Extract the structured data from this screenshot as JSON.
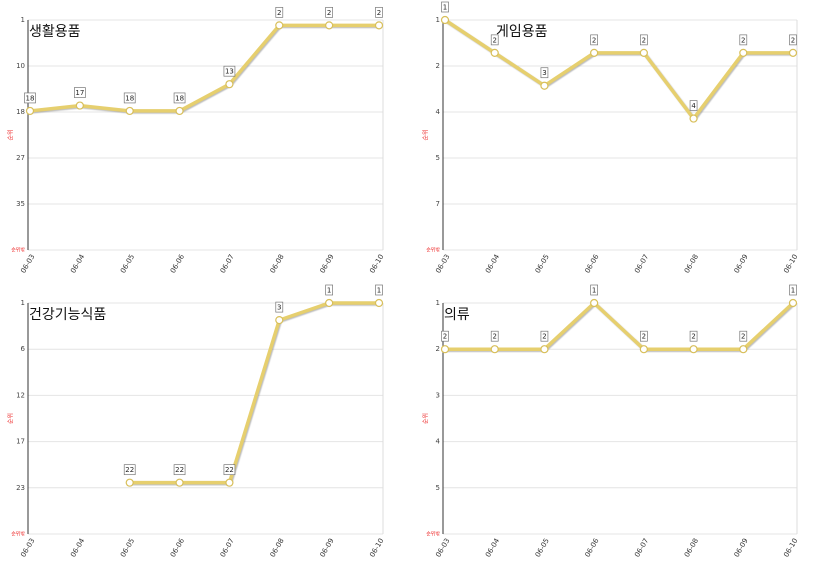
{
  "chart_data": [
    {
      "type": "line",
      "title": "생활용품",
      "ylabel": "순위",
      "y_inverted": true,
      "grid": true,
      "color": "#e6cf6e",
      "categories": [
        "06-03",
        "06-04",
        "06-05",
        "06-06",
        "06-07",
        "06-08",
        "06-09",
        "06-10"
      ],
      "values": [
        18,
        17,
        18,
        18,
        13,
        2,
        2,
        2
      ],
      "ylim": [
        1,
        44
      ],
      "yticks": [
        1,
        {
          "value": 9.6,
          "label": "10"
        },
        {
          "value": 18.2,
          "label": "18"
        },
        {
          "value": 26.8,
          "label": "27"
        },
        {
          "value": 35.4,
          "label": "35"
        },
        {
          "value": 44,
          "label": "순위밖"
        }
      ]
    },
    {
      "type": "line",
      "title": "게임용품",
      "ylabel": "순위",
      "y_inverted": true,
      "grid": true,
      "color": "#e6cf6e",
      "categories": [
        "06-03",
        "06-04",
        "06-05",
        "06-06",
        "06-07",
        "06-08",
        "06-09",
        "06-10"
      ],
      "values": [
        1,
        2,
        3,
        2,
        2,
        4,
        2,
        2
      ],
      "ylim": [
        1,
        8
      ],
      "yticks": [
        1,
        {
          "value": 2.4,
          "label": "2"
        },
        {
          "value": 3.8,
          "label": "4"
        },
        {
          "value": 5.2,
          "label": "5"
        },
        {
          "value": 6.6,
          "label": "7"
        },
        {
          "value": 8,
          "label": "순위밖"
        }
      ]
    },
    {
      "type": "line",
      "title": "건강기능식품",
      "ylabel": "순위",
      "y_inverted": true,
      "grid": true,
      "color": "#e6cf6e",
      "categories": [
        "06-03",
        "06-04",
        "06-05",
        "06-06",
        "06-07",
        "06-08",
        "06-09",
        "06-10"
      ],
      "values": [
        null,
        null,
        22,
        22,
        22,
        3,
        1,
        1
      ],
      "ylim": [
        1,
        28
      ],
      "yticks": [
        1,
        {
          "value": 6.4,
          "label": "6"
        },
        {
          "value": 11.8,
          "label": "12"
        },
        {
          "value": 17.2,
          "label": "17"
        },
        {
          "value": 22.6,
          "label": "23"
        },
        {
          "value": 28,
          "label": "순위밖"
        }
      ]
    },
    {
      "type": "line",
      "title": "의류",
      "ylabel": "순위",
      "y_inverted": true,
      "grid": true,
      "color": "#e6cf6e",
      "categories": [
        "06-03",
        "06-04",
        "06-05",
        "06-06",
        "06-07",
        "06-08",
        "06-09",
        "06-10"
      ],
      "values": [
        2,
        2,
        2,
        1,
        2,
        2,
        2,
        1
      ],
      "ylim": [
        1,
        6
      ],
      "yticks": [
        1,
        2,
        3,
        4,
        5,
        {
          "value": 6,
          "label": "순위밖"
        }
      ]
    }
  ]
}
